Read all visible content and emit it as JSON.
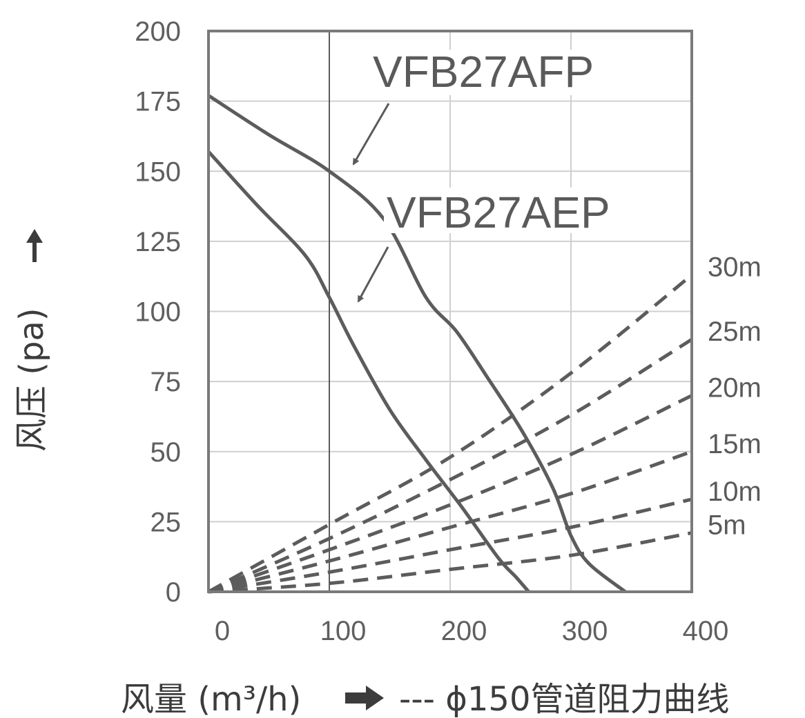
{
  "chart_data": {
    "type": "line",
    "title": "",
    "xlabel": "风量 (m³/h)",
    "ylabel": "风压 (pa)",
    "xlim": [
      0,
      400
    ],
    "ylim": [
      0,
      200
    ],
    "x_ticks": [
      "0",
      "100",
      "200",
      "300",
      "400"
    ],
    "y_ticks": [
      "200",
      "175",
      "150",
      "125",
      "100",
      "75",
      "50",
      "25",
      "0"
    ],
    "grid": true,
    "series": [
      {
        "name": "VFB27AFP",
        "style": "solid",
        "x": [
          0,
          50,
          100,
          145,
          180,
          205,
          230,
          260,
          285,
          300,
          315,
          345
        ],
        "y": [
          177,
          163,
          150,
          133,
          105,
          93,
          77,
          57,
          37,
          20,
          10,
          0
        ]
      },
      {
        "name": "VFB27AEP",
        "style": "solid",
        "x": [
          0,
          40,
          80,
          100,
          120,
          150,
          180,
          210,
          240,
          255,
          265
        ],
        "y": [
          157,
          138,
          120,
          105,
          88,
          65,
          47,
          30,
          12,
          5,
          0
        ]
      }
    ],
    "resistance_curves": {
      "caption": "--- ϕ150管道阻力曲线",
      "style": "dashed",
      "x": [
        0,
        100,
        200,
        300,
        400
      ],
      "curves": [
        {
          "label": "30m",
          "y": [
            0,
            24,
            48,
            78,
            113
          ]
        },
        {
          "label": "25m",
          "y": [
            0,
            19,
            40,
            63,
            90
          ]
        },
        {
          "label": "20m",
          "y": [
            0,
            15,
            31,
            49,
            70
          ]
        },
        {
          "label": "15m",
          "y": [
            0,
            11,
            23,
            35,
            50
          ]
        },
        {
          "label": "10m",
          "y": [
            0,
            7,
            15,
            23,
            33
          ]
        },
        {
          "label": "5m",
          "y": [
            0,
            3,
            8,
            13,
            21
          ]
        }
      ]
    },
    "annotations": [
      {
        "text": "VFB27AFP",
        "points_to": "VFB27AFP"
      },
      {
        "text": "VFB27AEP",
        "points_to": "VFB27AEP"
      }
    ],
    "colors": {
      "curve": "#5c5c5c",
      "frame": "#7a7a7a",
      "grid": "#cfcfcf",
      "text": "#5a5a5a"
    }
  },
  "ylabel_arrow": "up",
  "xlabel_arrow": "right"
}
